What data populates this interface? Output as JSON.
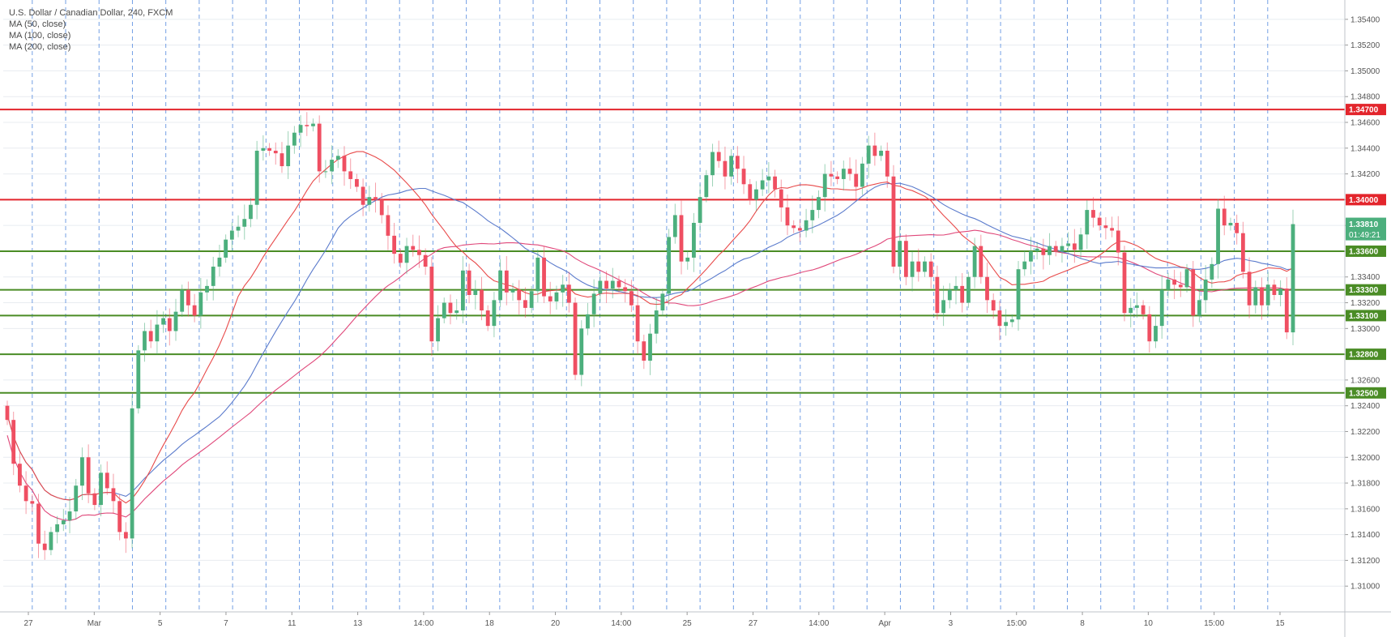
{
  "header": {
    "symbol": "U.S. Dollar / Canadian Dollar, 240, FXCM",
    "indicators": [
      "MA (50, close)",
      "MA (100, close)",
      "MA (200, close)"
    ]
  },
  "colors": {
    "up": "#4caf7d",
    "down": "#ef4f62",
    "resistance": "#e3252c",
    "support": "#4a8c25",
    "ma50": "#e84a4a",
    "ma100": "#5b7bcc",
    "ma200": "#e0487a",
    "session": "#5b8fe0",
    "last_price": "#4caf7d",
    "grid": "#e8ecf0"
  },
  "chart_data": {
    "type": "candlestick",
    "title": "U.S. Dollar / Canadian Dollar, 240, FXCM",
    "ylim": [
      1.308,
      1.3555
    ],
    "y_ticks": [
      "1.31000",
      "1.31200",
      "1.31400",
      "1.31600",
      "1.31800",
      "1.32000",
      "1.32200",
      "1.32400",
      "1.32600",
      "1.32800",
      "1.33000",
      "1.33200",
      "1.33400",
      "1.33600",
      "1.33800",
      "1.34000",
      "1.34200",
      "1.34400",
      "1.34600",
      "1.34800",
      "1.35000",
      "1.35200",
      "1.35400"
    ],
    "x_ticks": [
      "27",
      "Mar",
      "5",
      "7",
      "11",
      "13",
      "14:00",
      "18",
      "20",
      "14:00",
      "25",
      "27",
      "14:00",
      "Apr",
      "3",
      "15:00",
      "8",
      "10",
      "15:00",
      "15"
    ],
    "horizontal_levels": [
      {
        "price": 1.347,
        "label": "1.34700",
        "kind": "resistance"
      },
      {
        "price": 1.34,
        "label": "1.34000",
        "kind": "resistance"
      },
      {
        "price": 1.336,
        "label": "1.33600",
        "kind": "support"
      },
      {
        "price": 1.333,
        "label": "1.33300",
        "kind": "support"
      },
      {
        "price": 1.331,
        "label": "1.33100",
        "kind": "support"
      },
      {
        "price": 1.328,
        "label": "1.32800",
        "kind": "support"
      },
      {
        "price": 1.325,
        "label": "1.32500",
        "kind": "support"
      }
    ],
    "last_price": {
      "price": 1.3381,
      "label": "1.33810",
      "countdown": "01:49:21"
    },
    "closes": [
      1.3229,
      1.3195,
      1.3178,
      1.3166,
      1.3164,
      1.3133,
      1.3128,
      1.3142,
      1.3148,
      1.3151,
      1.3158,
      1.3178,
      1.32,
      1.3172,
      1.3163,
      1.3188,
      1.3176,
      1.3166,
      1.3142,
      1.3137,
      1.3238,
      1.3283,
      1.3298,
      1.329,
      1.3303,
      1.3308,
      1.3298,
      1.3313,
      1.333,
      1.3318,
      1.331,
      1.3328,
      1.3333,
      1.3348,
      1.3355,
      1.3369,
      1.3376,
      1.3379,
      1.3385,
      1.3396,
      1.3438,
      1.344,
      1.3438,
      1.3436,
      1.3426,
      1.3442,
      1.3452,
      1.3458,
      1.3457,
      1.3459,
      1.3422,
      1.3422,
      1.3431,
      1.3434,
      1.3422,
      1.3416,
      1.341,
      1.3396,
      1.3402,
      1.34,
      1.3388,
      1.3372,
      1.3358,
      1.3351,
      1.3364,
      1.3361,
      1.3357,
      1.3348,
      1.329,
      1.3308,
      1.332,
      1.3312,
      1.3314,
      1.3345,
      1.3326,
      1.333,
      1.3314,
      1.3302,
      1.3322,
      1.3345,
      1.3328,
      1.333,
      1.3322,
      1.3316,
      1.3329,
      1.3355,
      1.3325,
      1.3321,
      1.3328,
      1.3334,
      1.332,
      1.3264,
      1.33,
      1.3311,
      1.3327,
      1.3337,
      1.3331,
      1.3337,
      1.3332,
      1.3329,
      1.3318,
      1.329,
      1.3275,
      1.3296,
      1.3314,
      1.3327,
      1.3371,
      1.3388,
      1.3352,
      1.3355,
      1.3382,
      1.3402,
      1.3419,
      1.3437,
      1.343,
      1.3418,
      1.3434,
      1.3424,
      1.3412,
      1.34,
      1.3408,
      1.3415,
      1.3418,
      1.3408,
      1.3394,
      1.338,
      1.3378,
      1.3376,
      1.3384,
      1.3392,
      1.3402,
      1.342,
      1.3418,
      1.3416,
      1.3424,
      1.342,
      1.341,
      1.3428,
      1.3442,
      1.3434,
      1.3438,
      1.3418,
      1.3348,
      1.3368,
      1.334,
      1.3352,
      1.3344,
      1.3352,
      1.334,
      1.3312,
      1.3322,
      1.333,
      1.3333,
      1.332,
      1.334,
      1.3364,
      1.334,
      1.3322,
      1.3314,
      1.3302,
      1.3305,
      1.3307,
      1.3346,
      1.3352,
      1.336,
      1.3362,
      1.3357,
      1.3364,
      1.336,
      1.3364,
      1.3366,
      1.3361,
      1.3373,
      1.3392,
      1.3386,
      1.338,
      1.3378,
      1.3376,
      1.3359,
      1.3312,
      1.3316,
      1.3318,
      1.3311,
      1.329,
      1.3302,
      1.333,
      1.3338,
      1.3334,
      1.3332,
      1.3346,
      1.331,
      1.3322,
      1.3338,
      1.335,
      1.3393,
      1.338,
      1.3382,
      1.3374,
      1.3344,
      1.3318,
      1.3332,
      1.3318,
      1.3334,
      1.3326,
      1.3331,
      1.3297,
      1.3381
    ],
    "opens_first": 1.324,
    "ma50_last": 1.3338,
    "ma100_last": 1.3363,
    "ma200_last": 1.3345
  }
}
